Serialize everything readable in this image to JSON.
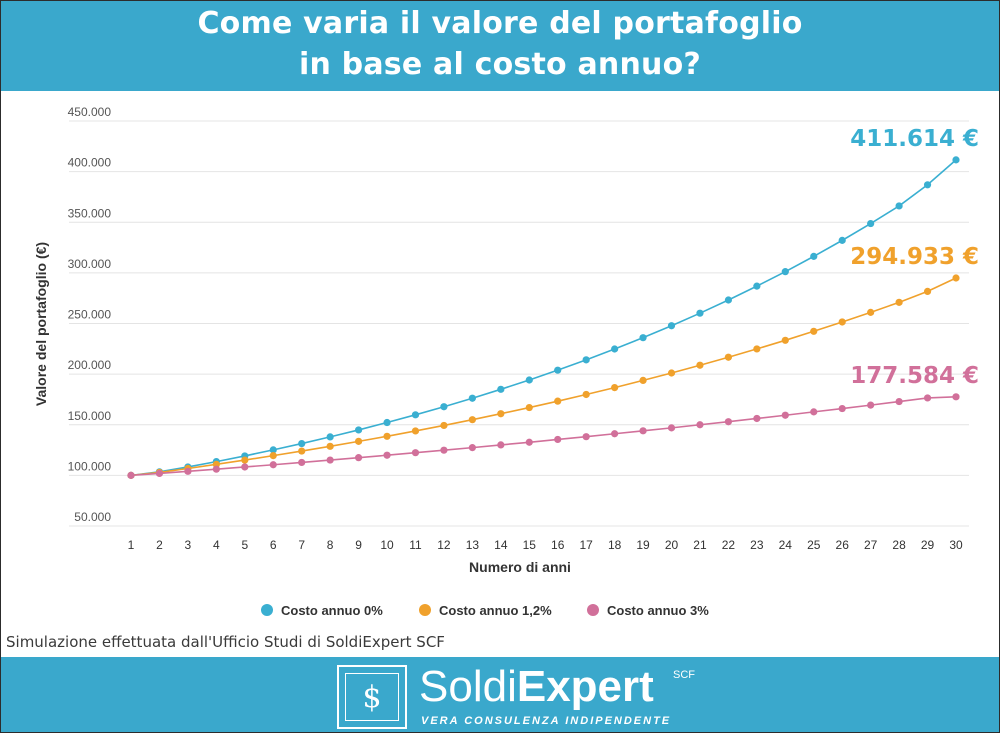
{
  "header": {
    "title_line1": "Come varia il valore del portafoglio",
    "title_line2": "in base al costo annuo?"
  },
  "caption": "Simulazione effettuata dall'Ufficio Studi di SoldiExpert SCF",
  "footer": {
    "logo_symbol": "$",
    "brand_part1": "Soldi",
    "brand_part2": "Expert",
    "brand_sup": "SCF",
    "tagline": "VERA CONSULENZA INDIPENDENTE"
  },
  "chart_data": {
    "type": "line",
    "xlabel": "Numero di anni",
    "ylabel": "Valore del portafoglio (€)",
    "categories": [
      "1",
      "2",
      "3",
      "4",
      "5",
      "6",
      "7",
      "8",
      "9",
      "10",
      "11",
      "12",
      "13",
      "14",
      "15",
      "16",
      "17",
      "18",
      "19",
      "20",
      "21",
      "22",
      "23",
      "24",
      "25",
      "26",
      "27",
      "28",
      "29",
      "30"
    ],
    "ylim": [
      50000,
      450000
    ],
    "yticks": [
      50000,
      100000,
      150000,
      200000,
      250000,
      300000,
      350000,
      400000,
      450000
    ],
    "ytick_labels": [
      "50.000",
      "100.000",
      "150.000",
      "200.000",
      "250.000",
      "300.000",
      "350.000",
      "400.000",
      "450.000"
    ],
    "grid": true,
    "legend_position": "bottom",
    "series": [
      {
        "name": "Costo annuo 0%",
        "color": "#3aafd1",
        "end_label": "411.614 €",
        "values": [
          100000,
          103500,
          108300,
          113600,
          119200,
          125200,
          131400,
          138000,
          144900,
          152200,
          159800,
          167800,
          176200,
          185000,
          194200,
          203900,
          214100,
          224800,
          236000,
          247800,
          260200,
          273200,
          286900,
          301200,
          316300,
          332100,
          348700,
          366100,
          387000,
          411614
        ]
      },
      {
        "name": "Costo annuo 1,2%",
        "color": "#f0a12c",
        "end_label": "294.933 €",
        "values": [
          100000,
          102900,
          106800,
          110900,
          115100,
          119500,
          124000,
          128700,
          133600,
          138600,
          143900,
          149300,
          155000,
          160900,
          167000,
          173300,
          179900,
          186700,
          193800,
          201100,
          208800,
          216700,
          224900,
          233400,
          242300,
          251500,
          261000,
          270900,
          281700,
          294933
        ]
      },
      {
        "name": "Costo annuo 3%",
        "color": "#d1709a",
        "end_label": "177.584 €",
        "values": [
          100000,
          101900,
          104000,
          106100,
          108300,
          110500,
          112800,
          115100,
          117500,
          119900,
          122400,
          124900,
          127400,
          130100,
          132700,
          135500,
          138200,
          141100,
          144000,
          146900,
          150000,
          153000,
          156200,
          159400,
          162700,
          166000,
          169400,
          172900,
          176500,
          177584
        ]
      }
    ]
  }
}
